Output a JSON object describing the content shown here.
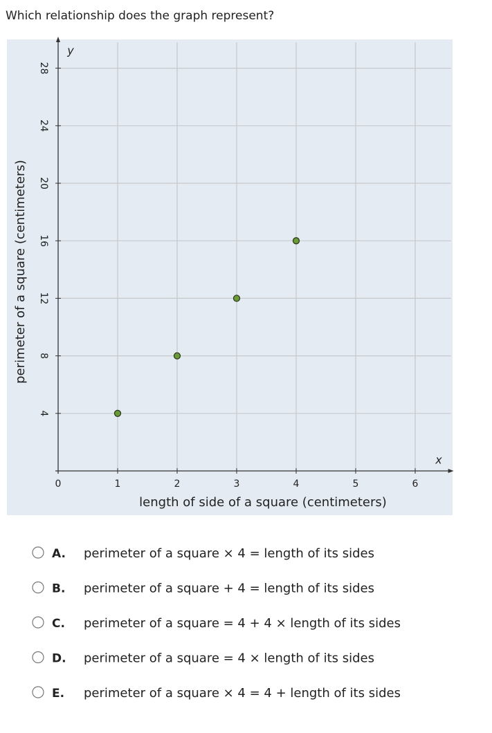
{
  "question": "Which relationship does the graph represent?",
  "chart_data": {
    "type": "scatter",
    "x_label": "length of side of a square (centimeters)",
    "y_label": "perimeter of a square (centimeters)",
    "x_axis_name": "x",
    "y_axis_name": "y",
    "x": [
      1,
      2,
      3,
      4
    ],
    "values": [
      4,
      8,
      12,
      16
    ],
    "color": "#6b9b37",
    "xlim": [
      0,
      6.6
    ],
    "ylim": [
      0,
      30
    ],
    "xticks": [
      0,
      1,
      2,
      3,
      4,
      5,
      6
    ],
    "yticks": [
      4,
      8,
      12,
      16,
      20,
      24,
      28
    ],
    "grid": true
  },
  "options": [
    {
      "letter": "A.",
      "text": "perimeter of a square × 4 = length of its sides"
    },
    {
      "letter": "B.",
      "text": "perimeter of a square + 4 = length of its sides"
    },
    {
      "letter": "C.",
      "text": "perimeter of a square = 4 + 4 × length of its sides"
    },
    {
      "letter": "D.",
      "text": "perimeter of a square = 4 × length of its sides"
    },
    {
      "letter": "E.",
      "text": "perimeter of a square × 4 = 4 + length of its sides"
    }
  ]
}
